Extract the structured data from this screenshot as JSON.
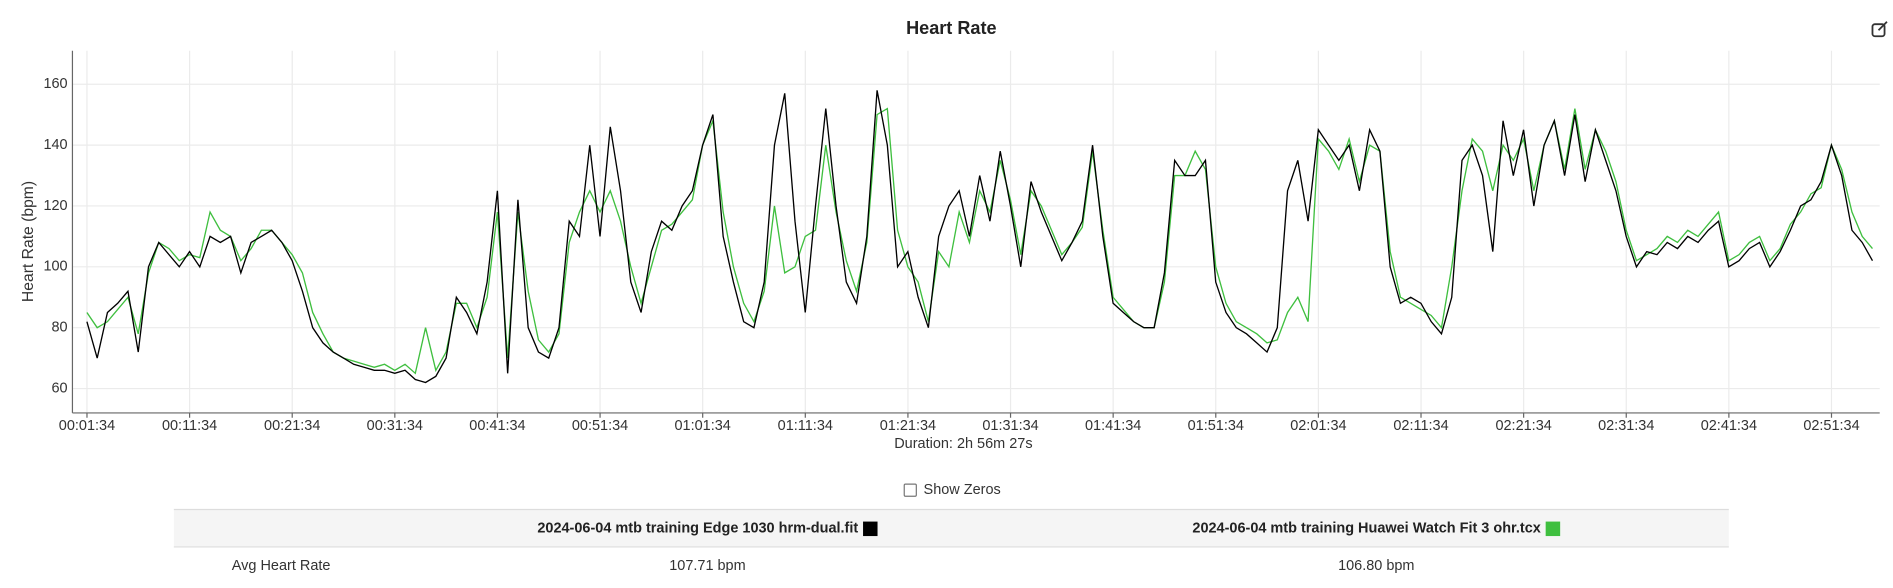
{
  "chart_data": {
    "type": "line",
    "title": "Heart Rate",
    "x_label": "Duration: 2h 56m 27s",
    "y_label": "Heart Rate (bpm)",
    "x": [
      94,
      154,
      214,
      274,
      334,
      394,
      454,
      514,
      574,
      634,
      694,
      754,
      814,
      874,
      934,
      994,
      1054,
      1114,
      1174,
      1234,
      1294,
      1354,
      1414,
      1474,
      1534,
      1594,
      1654,
      1714,
      1774,
      1834,
      1894,
      1954,
      2014,
      2074,
      2134,
      2194,
      2254,
      2314,
      2374,
      2434,
      2494,
      2554,
      2614,
      2674,
      2734,
      2794,
      2854,
      2914,
      2974,
      3034,
      3094,
      3154,
      3214,
      3274,
      3334,
      3394,
      3454,
      3514,
      3574,
      3634,
      3694,
      3754,
      3814,
      3874,
      3934,
      3994,
      4054,
      4114,
      4174,
      4234,
      4294,
      4354,
      4414,
      4474,
      4534,
      4594,
      4654,
      4714,
      4774,
      4834,
      4894,
      4954,
      5014,
      5074,
      5134,
      5194,
      5254,
      5314,
      5374,
      5434,
      5494,
      5554,
      5614,
      5674,
      5734,
      5794,
      5854,
      5914,
      5974,
      6034,
      6094,
      6154,
      6214,
      6274,
      6334,
      6394,
      6454,
      6514,
      6574,
      6634,
      6694,
      6754,
      6814,
      6874,
      6934,
      6994,
      7054,
      7114,
      7174,
      7234,
      7294,
      7354,
      7414,
      7474,
      7534,
      7594,
      7654,
      7714,
      7774,
      7834,
      7894,
      7954,
      8014,
      8074,
      8134,
      8194,
      8254,
      8314,
      8374,
      8434,
      8494,
      8554,
      8614,
      8674,
      8734,
      8794,
      8854,
      8914,
      8974,
      9034,
      9094,
      9154,
      9214,
      9274,
      9334,
      9394,
      9454,
      9514,
      9574,
      9634,
      9694,
      9754,
      9814,
      9874,
      9934,
      9994,
      10054,
      10114,
      10174,
      10234,
      10294,
      10354,
      10414,
      10474,
      10534
    ],
    "series": [
      {
        "name": "2024-06-04 mtb training Edge 1030 hrm-dual.fit",
        "color": "#000000",
        "values": [
          82,
          70,
          85,
          88,
          92,
          72,
          100,
          108,
          104,
          100,
          105,
          100,
          110,
          108,
          110,
          98,
          108,
          110,
          112,
          108,
          102,
          92,
          80,
          75,
          72,
          70,
          68,
          67,
          66,
          66,
          65,
          66,
          63,
          62,
          64,
          70,
          90,
          85,
          78,
          95,
          125,
          65,
          122,
          80,
          72,
          70,
          80,
          115,
          110,
          140,
          110,
          146,
          125,
          95,
          85,
          105,
          115,
          112,
          120,
          125,
          140,
          150,
          110,
          95,
          82,
          80,
          95,
          140,
          157,
          115,
          85,
          120,
          152,
          120,
          95,
          88,
          110,
          158,
          140,
          100,
          105,
          90,
          80,
          110,
          120,
          125,
          110,
          130,
          115,
          138,
          120,
          100,
          128,
          118,
          110,
          102,
          108,
          115,
          140,
          110,
          88,
          85,
          82,
          80,
          80,
          98,
          135,
          130,
          130,
          135,
          95,
          85,
          80,
          78,
          75,
          72,
          80,
          125,
          135,
          115,
          145,
          140,
          135,
          140,
          125,
          145,
          138,
          100,
          88,
          90,
          88,
          82,
          78,
          90,
          135,
          140,
          130,
          105,
          148,
          130,
          145,
          120,
          140,
          148,
          130,
          150,
          128,
          145,
          135,
          125,
          110,
          100,
          105,
          104,
          108,
          106,
          110,
          108,
          112,
          115,
          100,
          102,
          106,
          108,
          100,
          105,
          112,
          120,
          122,
          128,
          140,
          130,
          112,
          108,
          102
        ]
      },
      {
        "name": "2024-06-04 mtb training Huawei Watch Fit 3 ohr.tcx",
        "color": "#3fbf3f",
        "values": [
          85,
          80,
          82,
          86,
          90,
          78,
          98,
          108,
          106,
          102,
          104,
          103,
          118,
          112,
          110,
          102,
          106,
          112,
          112,
          108,
          104,
          98,
          85,
          78,
          72,
          70,
          69,
          68,
          67,
          68,
          66,
          68,
          65,
          80,
          66,
          72,
          88,
          88,
          80,
          90,
          118,
          70,
          118,
          92,
          76,
          72,
          78,
          108,
          118,
          125,
          118,
          125,
          115,
          100,
          88,
          100,
          112,
          114,
          118,
          122,
          140,
          148,
          118,
          100,
          88,
          82,
          92,
          120,
          98,
          100,
          110,
          112,
          140,
          118,
          102,
          92,
          108,
          150,
          152,
          112,
          100,
          95,
          82,
          105,
          100,
          118,
          108,
          125,
          118,
          135,
          122,
          104,
          125,
          120,
          112,
          104,
          108,
          113,
          138,
          112,
          90,
          86,
          82,
          80,
          80,
          95,
          130,
          130,
          138,
          132,
          100,
          88,
          82,
          80,
          78,
          75,
          76,
          85,
          90,
          82,
          142,
          138,
          132,
          142,
          128,
          140,
          138,
          105,
          90,
          88,
          86,
          84,
          80,
          100,
          125,
          142,
          138,
          125,
          140,
          135,
          142,
          125,
          140,
          148,
          132,
          152,
          132,
          145,
          138,
          128,
          112,
          102,
          104,
          106,
          110,
          108,
          112,
          110,
          114,
          118,
          102,
          104,
          108,
          110,
          102,
          106,
          114,
          118,
          124,
          126,
          140,
          132,
          118,
          110,
          106
        ]
      }
    ],
    "xlim": [
      9,
      10576
    ],
    "xticks": [
      {
        "value": 94,
        "label": "00:01:34"
      },
      {
        "value": 694,
        "label": "00:11:34"
      },
      {
        "value": 1294,
        "label": "00:21:34"
      },
      {
        "value": 1894,
        "label": "00:31:34"
      },
      {
        "value": 2494,
        "label": "00:41:34"
      },
      {
        "value": 3094,
        "label": "00:51:34"
      },
      {
        "value": 3694,
        "label": "01:01:34"
      },
      {
        "value": 4294,
        "label": "01:11:34"
      },
      {
        "value": 4894,
        "label": "01:21:34"
      },
      {
        "value": 5494,
        "label": "01:31:34"
      },
      {
        "value": 6094,
        "label": "01:41:34"
      },
      {
        "value": 6694,
        "label": "01:51:34"
      },
      {
        "value": 7294,
        "label": "02:01:34"
      },
      {
        "value": 7894,
        "label": "02:11:34"
      },
      {
        "value": 8494,
        "label": "02:21:34"
      },
      {
        "value": 9094,
        "label": "02:31:34"
      },
      {
        "value": 9694,
        "label": "02:41:34"
      },
      {
        "value": 10294,
        "label": "02:51:34"
      }
    ],
    "ylim": [
      52,
      171
    ],
    "yticks": [
      60,
      80,
      100,
      120,
      140,
      160
    ],
    "grid": true
  },
  "controls": {
    "show_zeros": "Show Zeros"
  },
  "table": {
    "rows": [
      {
        "label": "Avg Heart Rate",
        "values": [
          "107.71 bpm",
          "106.80 bpm"
        ]
      }
    ]
  }
}
